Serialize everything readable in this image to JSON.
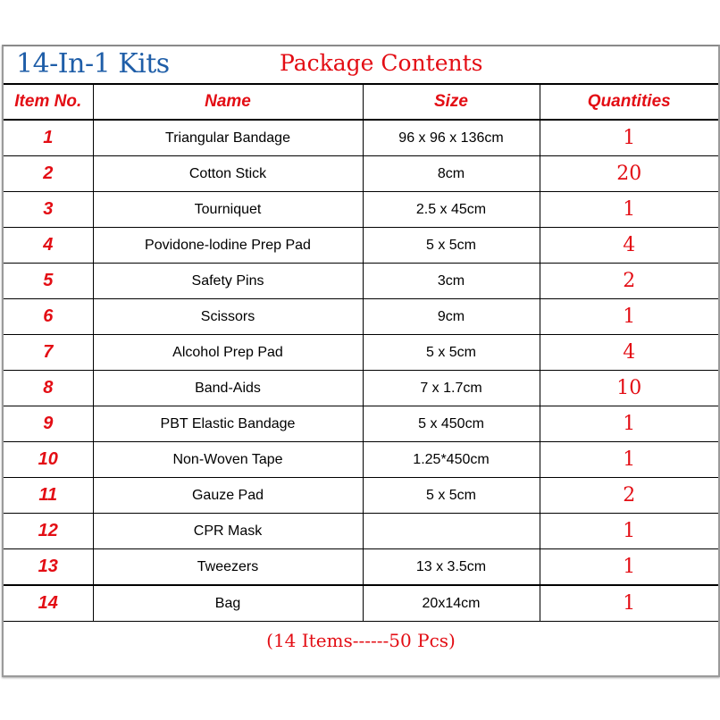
{
  "title": {
    "kit": "14-In-1 Kits",
    "heading": "Package Contents"
  },
  "columns": [
    "Item No.",
    "Name",
    "Size",
    "Quantities"
  ],
  "rows": [
    {
      "no": "1",
      "name": "Triangular Bandage",
      "size": "96 x 96 x 136cm",
      "qty": "1"
    },
    {
      "no": "2",
      "name": "Cotton Stick",
      "size": "8cm",
      "qty": "20"
    },
    {
      "no": "3",
      "name": "Tourniquet",
      "size": "2.5 x 45cm",
      "qty": "1"
    },
    {
      "no": "4",
      "name": "Povidone-lodine Prep Pad",
      "size": "5 x 5cm",
      "qty": "4"
    },
    {
      "no": "5",
      "name": "Safety Pins",
      "size": "3cm",
      "qty": "2"
    },
    {
      "no": "6",
      "name": "Scissors",
      "size": "9cm",
      "qty": "1"
    },
    {
      "no": "7",
      "name": "Alcohol Prep Pad",
      "size": "5 x 5cm",
      "qty": "4"
    },
    {
      "no": "8",
      "name": "Band-Aids",
      "size": "7 x 1.7cm",
      "qty": "10"
    },
    {
      "no": "9",
      "name": "PBT Elastic Bandage",
      "size": "5 x 450cm",
      "qty": "1"
    },
    {
      "no": "10",
      "name": "Non-Woven Tape",
      "size": "1.25*450cm",
      "qty": "1"
    },
    {
      "no": "11",
      "name": "Gauze Pad",
      "size": "5 x 5cm",
      "qty": "2"
    },
    {
      "no": "12",
      "name": "CPR Mask",
      "size": "",
      "qty": "1"
    },
    {
      "no": "13",
      "name": "Tweezers",
      "size": "13 x 3.5cm",
      "qty": "1"
    },
    {
      "no": "14",
      "name": "Bag",
      "size": "20x14cm",
      "qty": "1"
    }
  ],
  "footer": "(14 Items------50 Pcs)",
  "colors": {
    "red": "#e30d14",
    "blue": "#1f5ea8"
  }
}
